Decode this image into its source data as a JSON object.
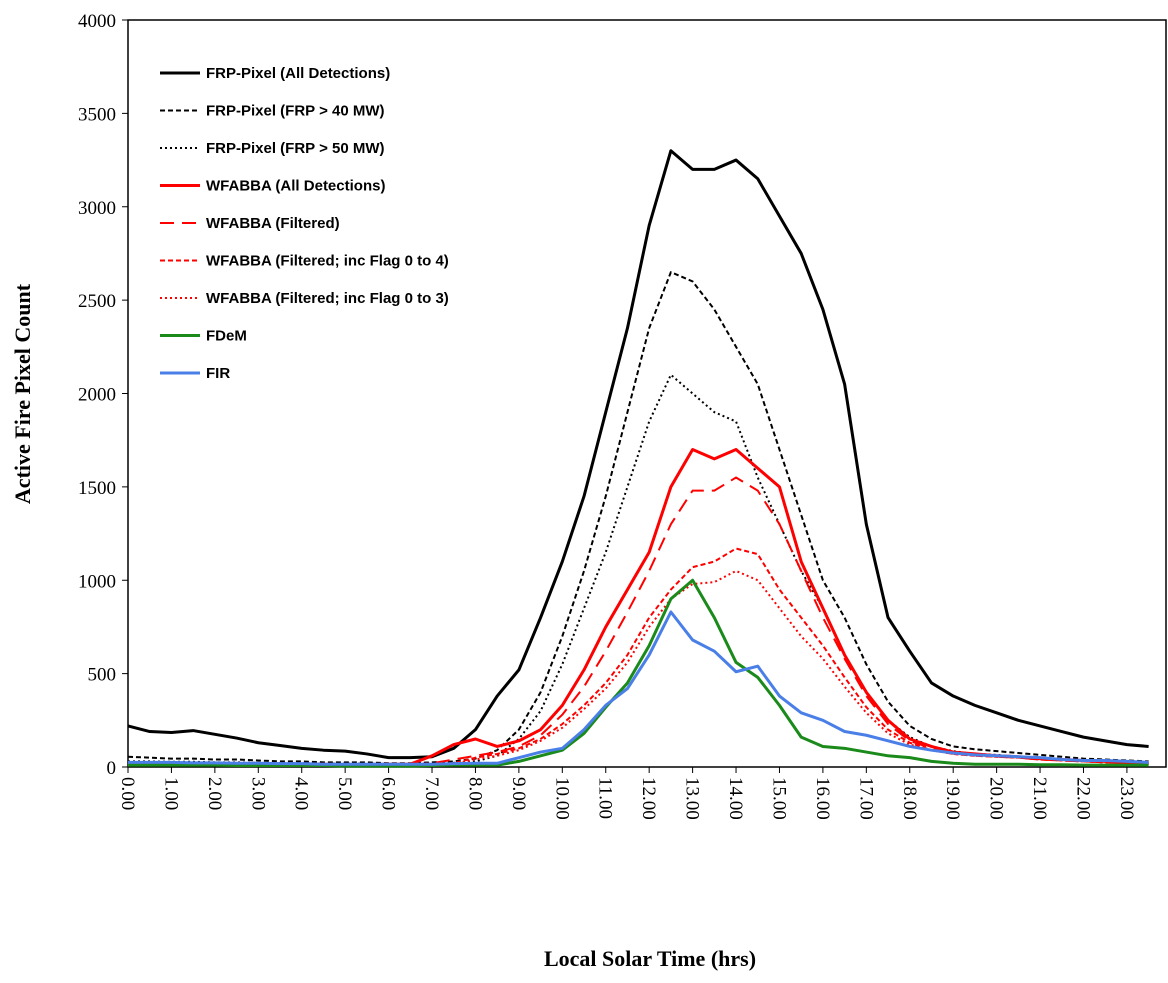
{
  "chart_data": {
    "type": "line",
    "y_label": "Active Fire Pixel Count",
    "x_label": "Local Solar Time (hrs)",
    "x": [
      0,
      0.5,
      1,
      1.5,
      2,
      2.5,
      3,
      3.5,
      4,
      4.5,
      5,
      5.5,
      6,
      6.5,
      7,
      7.5,
      8,
      8.5,
      9,
      9.5,
      10,
      10.5,
      11,
      11.5,
      12,
      12.5,
      13,
      13.5,
      14,
      14.5,
      15,
      15.5,
      16,
      16.5,
      17,
      17.5,
      18,
      18.5,
      19,
      19.5,
      20,
      20.5,
      21,
      21.5,
      22,
      22.5,
      23,
      23.5
    ],
    "xlim": [
      0,
      23.9
    ],
    "xticks": [
      {
        "value": 0,
        "label": "0.00"
      },
      {
        "value": 1,
        "label": "1.00"
      },
      {
        "value": 2,
        "label": "2.00"
      },
      {
        "value": 3,
        "label": "3.00"
      },
      {
        "value": 4,
        "label": "4.00"
      },
      {
        "value": 5,
        "label": "5.00"
      },
      {
        "value": 6,
        "label": "6.00"
      },
      {
        "value": 7,
        "label": "7.00"
      },
      {
        "value": 8,
        "label": "8.00"
      },
      {
        "value": 9,
        "label": "9.00"
      },
      {
        "value": 10,
        "label": "10.00"
      },
      {
        "value": 11,
        "label": "11.00"
      },
      {
        "value": 12,
        "label": "12.00"
      },
      {
        "value": 13,
        "label": "13.00"
      },
      {
        "value": 14,
        "label": "14.00"
      },
      {
        "value": 15,
        "label": "15.00"
      },
      {
        "value": 16,
        "label": "16.00"
      },
      {
        "value": 17,
        "label": "17.00"
      },
      {
        "value": 18,
        "label": "18.00"
      },
      {
        "value": 19,
        "label": "19.00"
      },
      {
        "value": 20,
        "label": "20.00"
      },
      {
        "value": 21,
        "label": "21.00"
      },
      {
        "value": 22,
        "label": "22.00"
      },
      {
        "value": 23,
        "label": "23.00"
      }
    ],
    "ylim": [
      0,
      4000
    ],
    "yticks": [
      0,
      500,
      1000,
      1500,
      2000,
      2500,
      3000,
      3500,
      4000
    ],
    "legend": "upper-left",
    "series": [
      {
        "name": "FRP-Pixel (All Detections)",
        "color": "#000000",
        "style": "solid",
        "values": [
          220,
          190,
          185,
          195,
          175,
          155,
          130,
          115,
          100,
          90,
          85,
          70,
          50,
          50,
          55,
          100,
          200,
          380,
          520,
          800,
          1100,
          1450,
          1900,
          2350,
          2900,
          3300,
          3200,
          3200,
          3250,
          3150,
          2950,
          2750,
          2450,
          2050,
          1300,
          800,
          620,
          450,
          380,
          330,
          290,
          250,
          220,
          190,
          160,
          140,
          120,
          110
        ]
      },
      {
        "name": "FRP-Pixel (FRP > 40 MW)",
        "color": "#000000",
        "style": "dashed",
        "values": [
          55,
          50,
          45,
          45,
          40,
          40,
          35,
          30,
          30,
          25,
          25,
          25,
          20,
          20,
          25,
          30,
          45,
          90,
          200,
          400,
          700,
          1050,
          1450,
          1900,
          2350,
          2650,
          2600,
          2450,
          2250,
          2050,
          1700,
          1350,
          1000,
          800,
          550,
          350,
          220,
          150,
          110,
          95,
          85,
          75,
          65,
          55,
          45,
          40,
          35,
          30
        ]
      },
      {
        "name": "FRP-Pixel (FRP > 50 MW)",
        "color": "#000000",
        "style": "dotted",
        "values": [
          30,
          30,
          28,
          28,
          25,
          25,
          22,
          20,
          20,
          18,
          18,
          18,
          15,
          15,
          18,
          22,
          30,
          60,
          150,
          300,
          550,
          850,
          1150,
          1500,
          1850,
          2100,
          2000,
          1900,
          1850,
          1550,
          1300,
          1050,
          850,
          600,
          400,
          250,
          160,
          110,
          85,
          70,
          65,
          55,
          50,
          40,
          35,
          30,
          25,
          20
        ]
      },
      {
        "name": "WFABBA (All Detections)",
        "color": "#ff0000",
        "style": "solid",
        "values": [
          20,
          20,
          20,
          18,
          18,
          18,
          15,
          15,
          15,
          15,
          12,
          12,
          15,
          15,
          60,
          120,
          150,
          110,
          140,
          200,
          330,
          520,
          750,
          950,
          1150,
          1500,
          1700,
          1650,
          1700,
          1600,
          1500,
          1100,
          850,
          600,
          400,
          250,
          150,
          110,
          80,
          70,
          60,
          55,
          45,
          40,
          35,
          30,
          25,
          20
        ]
      },
      {
        "name": "WFABBA (Filtered)",
        "color": "#ff0000",
        "style": "long-dash",
        "values": [
          15,
          15,
          15,
          12,
          12,
          12,
          10,
          10,
          10,
          10,
          10,
          10,
          12,
          12,
          20,
          40,
          60,
          80,
          110,
          170,
          280,
          430,
          620,
          830,
          1050,
          1300,
          1480,
          1480,
          1550,
          1480,
          1300,
          1050,
          800,
          580,
          380,
          230,
          140,
          100,
          75,
          65,
          55,
          50,
          40,
          35,
          30,
          25,
          20,
          18
        ]
      },
      {
        "name": "WFABBA (Filtered; inc Flag 0 to 4)",
        "color": "#ff0000",
        "style": "dashed",
        "values": [
          15,
          15,
          15,
          12,
          12,
          12,
          10,
          10,
          10,
          10,
          10,
          10,
          12,
          12,
          15,
          20,
          50,
          70,
          100,
          150,
          230,
          330,
          450,
          600,
          800,
          950,
          1070,
          1100,
          1170,
          1140,
          950,
          800,
          650,
          480,
          320,
          200,
          130,
          90,
          70,
          60,
          55,
          50,
          40,
          35,
          30,
          25,
          20,
          18
        ]
      },
      {
        "name": "WFABBA (Filtered; inc Flag 0 to 3)",
        "color": "#ff0000",
        "style": "dotted",
        "values": [
          15,
          15,
          15,
          12,
          12,
          12,
          10,
          10,
          10,
          10,
          10,
          10,
          12,
          12,
          15,
          18,
          40,
          60,
          90,
          140,
          210,
          310,
          420,
          560,
          750,
          900,
          980,
          990,
          1050,
          1000,
          850,
          700,
          580,
          430,
          290,
          180,
          120,
          90,
          70,
          60,
          55,
          50,
          40,
          35,
          30,
          25,
          20,
          18
        ]
      },
      {
        "name": "FDeM",
        "color": "#1a8a1a",
        "style": "solid",
        "values": [
          10,
          10,
          10,
          10,
          10,
          8,
          8,
          8,
          8,
          8,
          5,
          5,
          5,
          5,
          8,
          10,
          10,
          10,
          30,
          60,
          90,
          180,
          320,
          450,
          650,
          900,
          1000,
          800,
          560,
          480,
          330,
          160,
          110,
          100,
          80,
          60,
          50,
          30,
          20,
          15,
          15,
          15,
          12,
          12,
          10,
          10,
          10,
          10
        ]
      },
      {
        "name": "FIR",
        "color": "#4a7fe8",
        "style": "solid",
        "values": [
          25,
          25,
          25,
          22,
          22,
          20,
          20,
          18,
          18,
          15,
          15,
          15,
          15,
          15,
          15,
          18,
          20,
          20,
          50,
          80,
          100,
          200,
          330,
          420,
          600,
          830,
          680,
          620,
          510,
          540,
          380,
          290,
          250,
          190,
          170,
          140,
          110,
          90,
          75,
          65,
          60,
          55,
          50,
          40,
          35,
          35,
          30,
          25
        ]
      }
    ]
  }
}
